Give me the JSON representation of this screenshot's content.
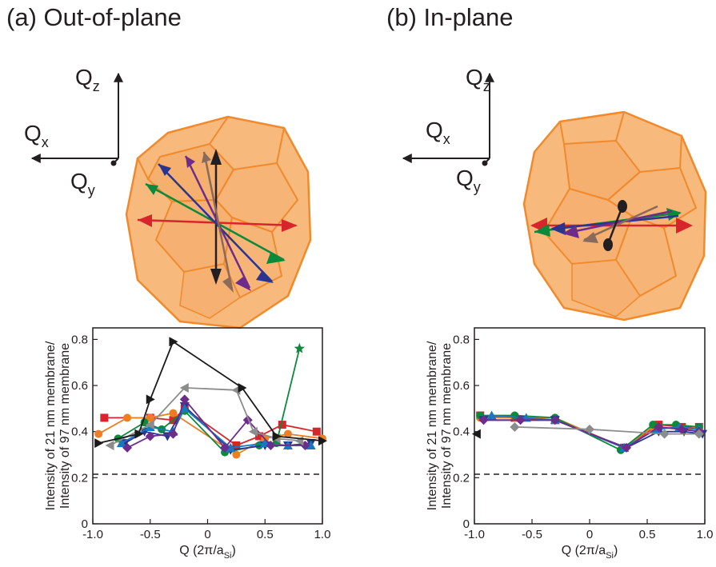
{
  "panels": [
    {
      "title": "(a) Out-of-plane"
    },
    {
      "title": "(b) In-plane"
    }
  ],
  "axis_labels": {
    "qz": "Q",
    "qz_sub": "z",
    "qx": "Q",
    "qx_sub": "x",
    "qy": "Q",
    "qy_sub": "y"
  },
  "chart_data": [
    {
      "type": "line",
      "panel": "a",
      "xlabel": "Q (2π/a",
      "xlabel_sub": "Si",
      "xlabel_end": ")",
      "ylabel_line1": "Intensity of 21 nm membrane/",
      "ylabel_line2": "Intensity of 97 nm membrane",
      "xlim": [
        -1.0,
        1.0
      ],
      "ylim": [
        0,
        0.85
      ],
      "xticks": [
        "-1.0",
        "-0.5",
        "0",
        "0.5",
        "1.0"
      ],
      "xtick_values": [
        -1.0,
        -0.5,
        0,
        0.5,
        1.0
      ],
      "yticks": [
        "0",
        "0.2",
        "0.4",
        "0.6",
        "0.8"
      ],
      "ytick_values": [
        0,
        0.2,
        0.4,
        0.6,
        0.8
      ],
      "reference_line": 0.215,
      "grid": false,
      "series": [
        {
          "color": "#d7262b",
          "marker": "square",
          "x": [
            -0.9,
            -0.5,
            -0.3,
            -0.2,
            0.25,
            0.45,
            0.65,
            0.95
          ],
          "y": [
            0.46,
            0.46,
            0.45,
            0.5,
            0.34,
            0.38,
            0.43,
            0.4
          ]
        },
        {
          "color": "#ef7d22",
          "marker": "circle",
          "x": [
            -0.95,
            -0.7,
            -0.5,
            -0.3,
            0.25,
            0.5,
            0.7,
            1.0
          ],
          "y": [
            0.39,
            0.46,
            0.46,
            0.48,
            0.3,
            0.37,
            0.39,
            0.37
          ]
        },
        {
          "color": "#0a8a3a",
          "marker": "circle",
          "x": [
            -0.78,
            -0.55,
            -0.4,
            -0.2,
            0.15,
            0.45,
            0.6,
            0.8
          ],
          "y": [
            0.37,
            0.44,
            0.41,
            0.49,
            0.31,
            0.34,
            0.35,
            0.76
          ]
        },
        {
          "color": "#2b3590",
          "marker": "triangle-down",
          "x": [
            -0.72,
            -0.55,
            -0.35,
            -0.2,
            0.2,
            0.5,
            0.7,
            0.9
          ],
          "y": [
            0.35,
            0.4,
            0.38,
            0.51,
            0.32,
            0.34,
            0.34,
            0.35
          ]
        },
        {
          "color": "#1877bd",
          "marker": "triangle-up",
          "x": [
            -0.75,
            -0.5,
            -0.3,
            -0.2,
            0.2,
            0.5,
            0.7,
            0.9
          ],
          "y": [
            0.35,
            0.42,
            0.4,
            0.5,
            0.33,
            0.35,
            0.34,
            0.34
          ]
        },
        {
          "color": "#6d2c8c",
          "marker": "diamond",
          "x": [
            -0.7,
            -0.5,
            -0.3,
            -0.2,
            0.15,
            0.35,
            0.55,
            0.85
          ],
          "y": [
            0.33,
            0.38,
            0.39,
            0.54,
            0.33,
            0.45,
            0.34,
            0.34
          ]
        },
        {
          "color": "#8c8c8c",
          "marker": "triangle-left",
          "x": [
            -0.85,
            -0.5,
            -0.2,
            0.25,
            0.4,
            0.6,
            0.8
          ],
          "y": [
            0.34,
            0.43,
            0.59,
            0.58,
            0.4,
            0.37,
            0.36
          ]
        },
        {
          "color": "#1a1a1a",
          "marker": "triangle-right",
          "x": [
            -0.95,
            -0.6,
            -0.5,
            -0.3,
            0.3,
            0.6,
            1.0
          ],
          "y": [
            0.35,
            0.39,
            0.54,
            0.79,
            0.59,
            0.38,
            0.36
          ]
        }
      ]
    },
    {
      "type": "line",
      "panel": "b",
      "xlabel": "Q (2π/a",
      "xlabel_sub": "Si",
      "xlabel_end": ")",
      "ylabel_line1": "Intensity of 21 nm membrane/",
      "ylabel_line2": "Intensity of 97 nm membrane",
      "xlim": [
        -1.0,
        1.0
      ],
      "ylim": [
        0,
        0.85
      ],
      "xticks": [
        "-1.0",
        "-0.5",
        "0",
        "0.5",
        "1.0"
      ],
      "xtick_values": [
        -1.0,
        -0.5,
        0,
        0.5,
        1.0
      ],
      "yticks": [
        "0",
        "0.2",
        "0.4",
        "0.6",
        "0.8"
      ],
      "ytick_values": [
        0,
        0.2,
        0.4,
        0.6,
        0.8
      ],
      "reference_line": 0.215,
      "grid": false,
      "series": [
        {
          "color": "#d7262b",
          "marker": "square",
          "x": [
            -0.95,
            -0.65,
            -0.3,
            0.3,
            0.6,
            0.8,
            0.95
          ],
          "y": [
            0.47,
            0.46,
            0.45,
            0.33,
            0.43,
            0.42,
            0.42
          ]
        },
        {
          "color": "#ef7d22",
          "marker": "circle",
          "x": [
            -0.95,
            -0.65,
            -0.3,
            0.3,
            0.55,
            0.8,
            0.95
          ],
          "y": [
            0.46,
            0.46,
            0.46,
            0.33,
            0.42,
            0.41,
            0.41
          ]
        },
        {
          "color": "#0a8a3a",
          "marker": "circle",
          "x": [
            -0.95,
            -0.65,
            -0.3,
            0.27,
            0.55,
            0.75,
            0.95
          ],
          "y": [
            0.47,
            0.47,
            0.46,
            0.32,
            0.43,
            0.43,
            0.42
          ]
        },
        {
          "color": "#2b3590",
          "marker": "triangle-down",
          "x": [
            -0.92,
            -0.6,
            -0.3,
            0.32,
            0.6,
            0.82,
            0.98
          ],
          "y": [
            0.45,
            0.45,
            0.45,
            0.33,
            0.4,
            0.4,
            0.39
          ]
        },
        {
          "color": "#1877bd",
          "marker": "triangle-up",
          "x": [
            -0.85,
            -0.55,
            -0.3,
            0.3,
            0.58,
            0.78,
            0.95
          ],
          "y": [
            0.47,
            0.46,
            0.45,
            0.33,
            0.41,
            0.42,
            0.41
          ]
        },
        {
          "color": "#6d2c8c",
          "marker": "diamond",
          "x": [
            -0.92,
            -0.6,
            -0.3,
            0.32,
            0.6,
            0.8,
            0.95
          ],
          "y": [
            0.45,
            0.45,
            0.45,
            0.33,
            0.42,
            0.41,
            0.4
          ]
        },
        {
          "color": "#8c8c8c",
          "marker": "diamond",
          "x": [
            -0.65,
            0.0,
            0.65,
            0.95
          ],
          "y": [
            0.42,
            0.41,
            0.39,
            0.39
          ]
        },
        {
          "color": "#1a1a1a",
          "marker": "triangle-left",
          "x": [
            -0.98
          ],
          "y": [
            0.39
          ]
        }
      ]
    }
  ]
}
